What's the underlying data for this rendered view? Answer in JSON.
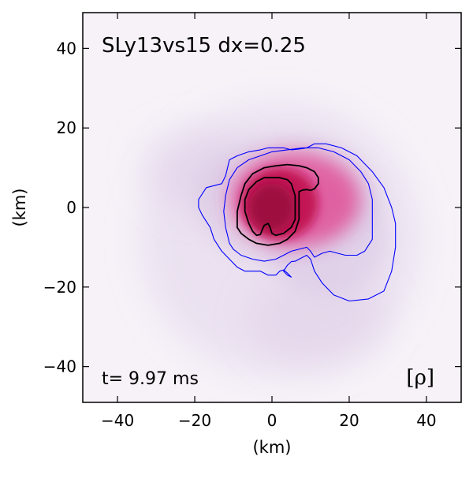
{
  "chart_data": {
    "type": "heatmap",
    "title": "SLy13vs15 dx=0.25",
    "time_label": "t= 9.97 ms",
    "field_label": "[ρ]",
    "xlabel": "(km)",
    "ylabel": "(km)",
    "xlim": [
      -49,
      49
    ],
    "ylim": [
      -49,
      49
    ],
    "xticks": [
      -40,
      -20,
      0,
      20,
      40
    ],
    "yticks": [
      -40,
      -20,
      0,
      20,
      40
    ],
    "xtick_labels": [
      "−40",
      "−20",
      "0",
      "20",
      "40"
    ],
    "ytick_labels": [
      "−40",
      "−20",
      "0",
      "20",
      "40"
    ],
    "colors": {
      "background": "#f6f2f8",
      "low": "#d8c4e2",
      "mid": "#e03c8c",
      "high": "#c0104e",
      "core": "#9a0a3e",
      "outer_contour": "#0000ff",
      "inner_contour": "#000000"
    },
    "contours": [
      {
        "name": "outer",
        "color": "#0000ff",
        "points": [
          [
            -19,
            2
          ],
          [
            -17,
            5
          ],
          [
            -13,
            6
          ],
          [
            -12,
            8
          ],
          [
            -11,
            12
          ],
          [
            -9,
            13
          ],
          [
            -6,
            14
          ],
          [
            -3,
            14.5
          ],
          [
            -1,
            15
          ],
          [
            1,
            15
          ],
          [
            3,
            15
          ],
          [
            5,
            14.5
          ],
          [
            7,
            14.7
          ],
          [
            9,
            15
          ],
          [
            11,
            16
          ],
          [
            14,
            16
          ],
          [
            18,
            15
          ],
          [
            22,
            13
          ],
          [
            26,
            9
          ],
          [
            29,
            5
          ],
          [
            31,
            0
          ],
          [
            32,
            -4
          ],
          [
            32,
            -10
          ],
          [
            31,
            -16
          ],
          [
            29,
            -21
          ],
          [
            25,
            -23
          ],
          [
            20,
            -23.5
          ],
          [
            16,
            -22
          ],
          [
            13,
            -19
          ],
          [
            11,
            -16
          ],
          [
            10,
            -13
          ],
          [
            9,
            -12
          ],
          [
            8,
            -12.5
          ],
          [
            7,
            -13
          ],
          [
            6,
            -13.5
          ],
          [
            5,
            -13.6
          ],
          [
            4,
            -14.5
          ],
          [
            3,
            -16
          ],
          [
            4,
            -17
          ],
          [
            5,
            -17.5
          ],
          [
            4,
            -16.5
          ],
          [
            3,
            -15.7
          ],
          [
            2,
            -16
          ],
          [
            1,
            -17
          ],
          [
            0,
            -17
          ],
          [
            -1,
            -17
          ],
          [
            -3,
            -16
          ],
          [
            -5,
            -16
          ],
          [
            -7,
            -16
          ],
          [
            -9,
            -15
          ],
          [
            -11,
            -13
          ],
          [
            -13,
            -11
          ],
          [
            -15,
            -8
          ],
          [
            -16,
            -5
          ],
          [
            -18,
            -2
          ],
          [
            -19,
            0
          ],
          [
            -19,
            2
          ]
        ]
      },
      {
        "name": "middle",
        "color": "#0000ff",
        "points": [
          [
            -11,
            -9
          ],
          [
            -12,
            -5
          ],
          [
            -12.5,
            -1
          ],
          [
            -12,
            3
          ],
          [
            -11,
            7
          ],
          [
            -9,
            10
          ],
          [
            -6,
            12
          ],
          [
            -3,
            13
          ],
          [
            0,
            14
          ],
          [
            4,
            14.5
          ],
          [
            8,
            15
          ],
          [
            12,
            15
          ],
          [
            16,
            14
          ],
          [
            20,
            12
          ],
          [
            23,
            9
          ],
          [
            25,
            6
          ],
          [
            26,
            2
          ],
          [
            26,
            -3
          ],
          [
            26,
            -8
          ],
          [
            24,
            -11
          ],
          [
            22,
            -12
          ],
          [
            19,
            -12
          ],
          [
            17,
            -11.5
          ],
          [
            15,
            -11
          ],
          [
            13,
            -11.5
          ],
          [
            12,
            -12
          ],
          [
            11,
            -12.5
          ],
          [
            10,
            -11
          ],
          [
            9,
            -10
          ],
          [
            7,
            -10.5
          ],
          [
            5,
            -11
          ],
          [
            3,
            -12
          ],
          [
            1,
            -13
          ],
          [
            -2,
            -13.5
          ],
          [
            -5,
            -13
          ],
          [
            -8,
            -12
          ],
          [
            -10,
            -10.5
          ],
          [
            -11,
            -9
          ]
        ]
      },
      {
        "name": "inner-1",
        "color": "#000000",
        "points": [
          [
            -9,
            -5
          ],
          [
            -9,
            -1
          ],
          [
            -8,
            3
          ],
          [
            -7,
            6
          ],
          [
            -5,
            8.5
          ],
          [
            -2,
            10
          ],
          [
            1,
            10.5
          ],
          [
            4,
            10.8
          ],
          [
            7,
            10.5
          ],
          [
            9,
            10
          ],
          [
            11,
            9
          ],
          [
            12,
            7.5
          ],
          [
            12,
            6
          ],
          [
            11,
            4.7
          ],
          [
            10,
            4.3
          ],
          [
            9,
            4.5
          ],
          [
            8,
            4.4
          ],
          [
            7,
            4
          ],
          [
            7,
            1
          ],
          [
            7,
            -3
          ],
          [
            6,
            -6
          ],
          [
            4,
            -8
          ],
          [
            2,
            -9
          ],
          [
            -1,
            -9.5
          ],
          [
            -4,
            -9
          ],
          [
            -6,
            -8
          ],
          [
            -8,
            -6.5
          ],
          [
            -9,
            -5
          ]
        ]
      },
      {
        "name": "inner-2",
        "color": "#000000",
        "points": [
          [
            -7,
            -1
          ],
          [
            -7,
            2
          ],
          [
            -6,
            4.5
          ],
          [
            -4,
            6.5
          ],
          [
            -2,
            7.5
          ],
          [
            0,
            7.5
          ],
          [
            2,
            7.5
          ],
          [
            4,
            7
          ],
          [
            5,
            6
          ],
          [
            6,
            3
          ],
          [
            6,
            0
          ],
          [
            6,
            -3
          ],
          [
            5,
            -5
          ],
          [
            3,
            -6.5
          ],
          [
            1,
            -7
          ],
          [
            0,
            -6.5
          ],
          [
            -0.5,
            -5
          ],
          [
            -1,
            -4
          ],
          [
            -2,
            -4.5
          ],
          [
            -2.5,
            -5.5
          ],
          [
            -3,
            -6.8
          ],
          [
            -4,
            -7
          ],
          [
            -5,
            -6
          ],
          [
            -6,
            -4
          ],
          [
            -7,
            -1
          ]
        ]
      }
    ]
  }
}
